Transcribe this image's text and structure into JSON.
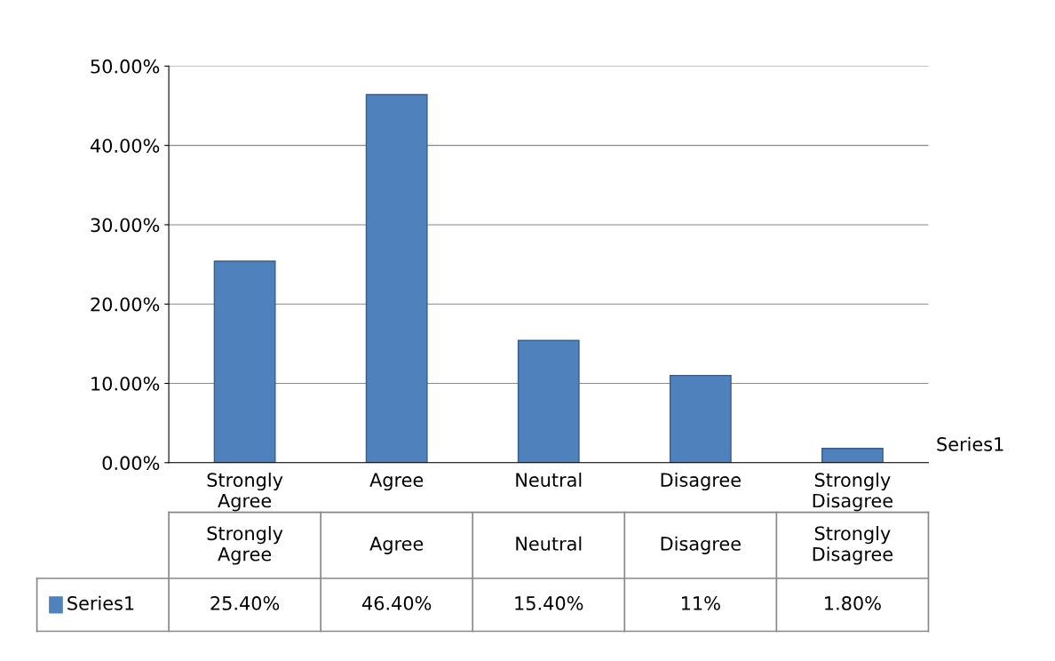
{
  "chart_data": {
    "type": "bar",
    "categories": [
      "Strongly\nAgree",
      "Agree",
      "Neutral",
      "Disagree",
      "Strongly\nDisagree"
    ],
    "series": [
      {
        "name": "Series1",
        "color": "#4f81bd",
        "values": [
          25.4,
          46.4,
          15.4,
          11,
          1.8
        ],
        "value_labels": [
          "25.40%",
          "46.40%",
          "15.40%",
          "11%",
          "1.80%"
        ]
      }
    ],
    "ylim": [
      0,
      50
    ],
    "yticks": [
      {
        "value": 0,
        "label": "0.00%"
      },
      {
        "value": 10,
        "label": "10.00%"
      },
      {
        "value": 20,
        "label": "20.00%"
      },
      {
        "value": 30,
        "label": "30.00%"
      },
      {
        "value": 40,
        "label": "40.00%"
      },
      {
        "value": 50,
        "label": "50.00%"
      }
    ],
    "grid": "y",
    "legend": "bottom"
  }
}
